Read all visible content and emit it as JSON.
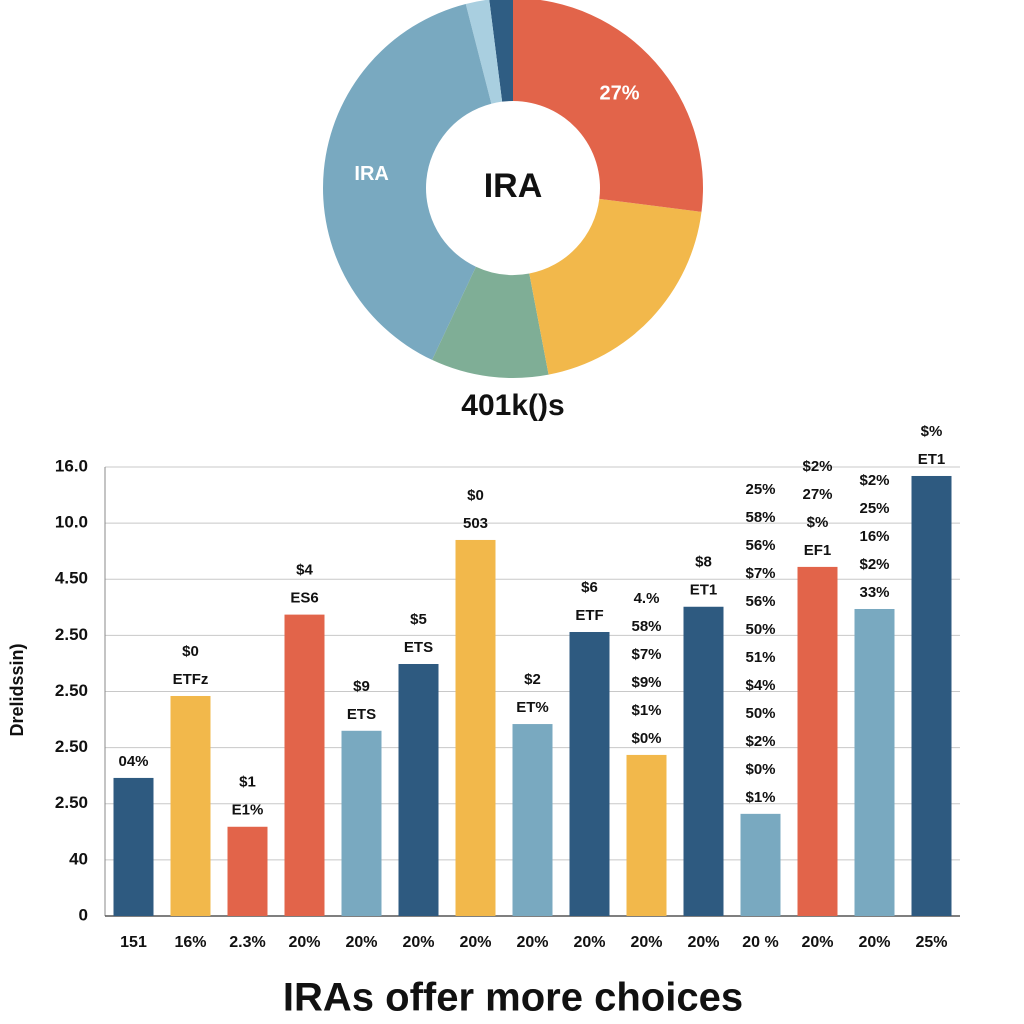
{
  "chart_data": [
    {
      "type": "pie",
      "center_label": "IRA",
      "caption": "401k()s",
      "values": [
        27,
        20,
        10,
        39,
        2,
        2
      ],
      "colors": [
        "#e2644a",
        "#f2b84b",
        "#7fae96",
        "#79a9c0",
        "#a9cfe0",
        "#2f5d83"
      ],
      "slice_labels": [
        "27%",
        null,
        null,
        "IRA",
        null,
        null
      ]
    },
    {
      "type": "bar",
      "title": "IRAs offer more choices",
      "y_label": "Drelidssin)",
      "categories": [
        "151",
        "16%",
        "2.3%",
        "20%",
        "20%",
        "20%",
        "20%",
        "20%",
        "20%",
        "20%",
        "20%",
        "20 %",
        "20%",
        "20%",
        "25%"
      ],
      "values": [
        2.46,
        3.92,
        1.59,
        5.37,
        3.3,
        4.49,
        6.7,
        3.42,
        5.06,
        2.87,
        5.51,
        1.82,
        6.22,
        5.47,
        7.84
      ],
      "colors": [
        "#2e5a80",
        "#f2b84b",
        "#e2644a",
        "#e2644a",
        "#79a9c0",
        "#2e5a80",
        "#f2b84b",
        "#79a9c0",
        "#2e5a80",
        "#f2b84b",
        "#2e5a80",
        "#79a9c0",
        "#e2644a",
        "#79a9c0",
        "#2e5a80"
      ],
      "bar_labels": [
        [
          "04%"
        ],
        [
          "$0",
          "ETFz"
        ],
        [
          "$1",
          "E1%"
        ],
        [
          "$4",
          "ES6"
        ],
        [
          "$9",
          "ETS"
        ],
        [
          "$5",
          "ETS"
        ],
        [
          "$0",
          "503"
        ],
        [
          "$2",
          "ET%"
        ],
        [
          "$6",
          "ETF"
        ],
        [
          "4.%",
          "58%",
          "$7%",
          "$9%",
          "$1%",
          "$0%"
        ],
        [
          "$8",
          "ET1"
        ],
        [
          "25%",
          "58%",
          "56%",
          "$7%",
          "56%",
          "50%",
          "51%",
          "$4%",
          "50%",
          "$2%",
          "$0%",
          "$1%"
        ],
        [
          "$2%",
          "27%",
          "$%",
          "EF1"
        ],
        [
          "$2%",
          "25%",
          "16%",
          "$2%",
          "33%"
        ],
        [
          "$%",
          "ET1"
        ]
      ],
      "ylim": [
        0,
        8
      ],
      "yticks": [
        0,
        {
          "value": 1,
          "label": "40"
        },
        {
          "value": 2,
          "label": "2.50"
        },
        {
          "value": 3,
          "label": "2.50"
        },
        {
          "value": 4,
          "label": "2.50"
        },
        {
          "value": 5,
          "label": "2.50"
        },
        {
          "value": 6,
          "label": "4.50"
        },
        {
          "value": 7,
          "label": "10.0"
        },
        {
          "value": 8,
          "label": "16.0"
        }
      ],
      "grid": true
    }
  ]
}
